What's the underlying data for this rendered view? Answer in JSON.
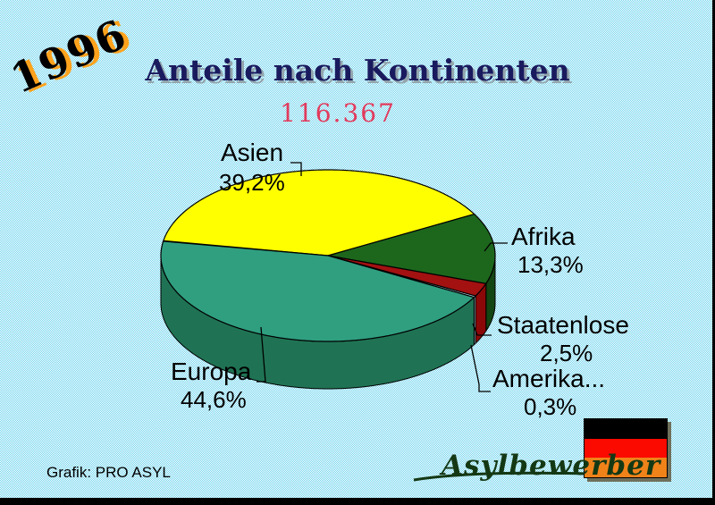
{
  "slide": {
    "year_badge": "1996",
    "title": "Anteile nach Kontinenten",
    "total": "116.367",
    "credit": "Grafik: PRO ASYL",
    "brand": "Asylbewerber"
  },
  "theme": {
    "title_color": "#1a1a5e",
    "total_color": "#e23a5c",
    "brand_color": "#143814",
    "label_color": "#000000",
    "background": "#aee3f2"
  },
  "flag": {
    "country": "germany",
    "stripes": [
      "#000000",
      "#fb0a00",
      "#f0821a"
    ]
  },
  "chart_data": {
    "type": "pie",
    "style": "3d-pie",
    "title": "Anteile nach Kontinenten",
    "total_label": "116.367",
    "year": "1996",
    "slices": [
      {
        "label": "Asien",
        "value": 39.2,
        "pct_label": "39,2%",
        "color": "#ffff00",
        "side_color": "#b0b000"
      },
      {
        "label": "Afrika",
        "value": 13.3,
        "pct_label": "13,3%",
        "color": "#1d671d",
        "side_color": "#134613"
      },
      {
        "label": "Staatenlose",
        "value": 2.5,
        "pct_label": "2,5%",
        "color": "#a31111",
        "side_color": "#8b0808"
      },
      {
        "label": "Amerika...",
        "value": 0.3,
        "pct_label": "0,3%",
        "color": "#b8e2ee",
        "side_color": "#9ccfdf"
      },
      {
        "label": "Europa",
        "value": 44.6,
        "pct_label": "44,6%",
        "color": "#2f9f80",
        "side_color": "#1f7354"
      }
    ]
  }
}
